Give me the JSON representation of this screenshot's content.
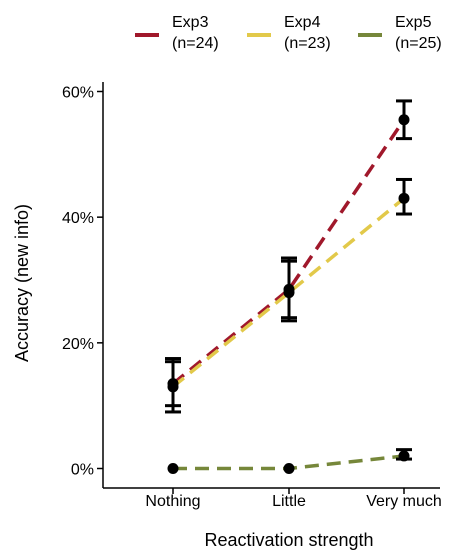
{
  "chart_data": {
    "type": "line",
    "xlabel": "Reactivation strength",
    "ylabel": "Accuracy (new info)",
    "categories": [
      "Nothing",
      "Little",
      "Very much"
    ],
    "yticks": [
      "0%",
      "20%",
      "40%",
      "60%"
    ],
    "ytick_values": [
      0,
      20,
      40,
      60
    ],
    "ylim": [
      -2.5,
      62
    ],
    "legend_position": "top",
    "series": [
      {
        "name": "Exp3",
        "n_label": "(n=24)",
        "color": "#a0182b",
        "values": [
          13.5,
          28.5,
          55.5
        ],
        "error_low": [
          10.0,
          24.0,
          52.5
        ],
        "error_high": [
          17.0,
          33.0,
          58.5
        ]
      },
      {
        "name": "Exp4",
        "n_label": "(n=23)",
        "color": "#e2c94a",
        "values": [
          13.0,
          28.0,
          43.0
        ],
        "error_low": [
          9.0,
          23.5,
          40.5
        ],
        "error_high": [
          17.5,
          33.5,
          46.0
        ]
      },
      {
        "name": "Exp5",
        "n_label": "(n=25)",
        "color": "#76873a",
        "values": [
          0.0,
          0.0,
          2.0
        ],
        "error_low": [
          0.0,
          0.0,
          1.5
        ],
        "error_high": [
          0.0,
          0.0,
          3.0
        ]
      }
    ]
  }
}
